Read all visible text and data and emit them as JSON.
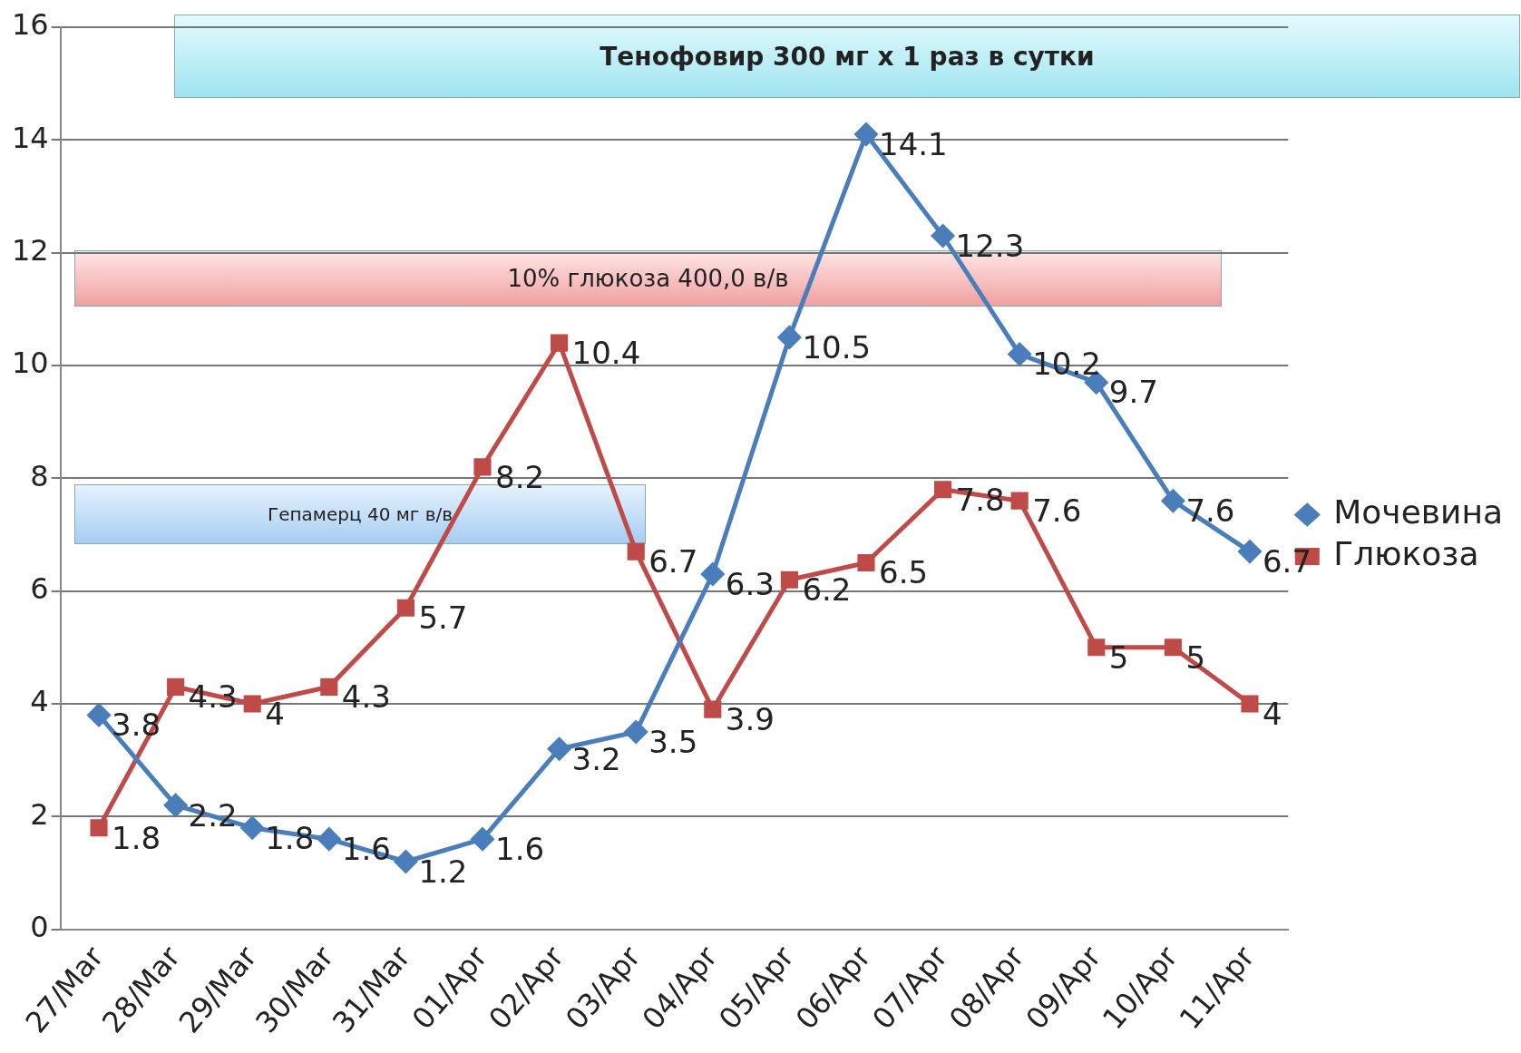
{
  "chart_data": {
    "type": "line",
    "categories": [
      "27/Mar",
      "28/Mar",
      "29/Mar",
      "30/Mar",
      "31/Mar",
      "01/Apr",
      "02/Apr",
      "03/Apr",
      "04/Apr",
      "05/Apr",
      "06/Apr",
      "07/Apr",
      "08/Apr",
      "09/Apr",
      "10/Apr",
      "11/Apr"
    ],
    "series": [
      {
        "name": "Мочевина",
        "color": "#4a7ebb",
        "marker": "diamond",
        "values": [
          3.8,
          2.2,
          1.8,
          1.6,
          1.2,
          1.6,
          3.2,
          3.5,
          6.3,
          10.5,
          14.1,
          12.3,
          10.2,
          9.7,
          7.6,
          6.7
        ]
      },
      {
        "name": "Глюкоза",
        "color": "#be4b48",
        "marker": "square",
        "values": [
          1.8,
          4.3,
          4,
          4.3,
          5.7,
          8.2,
          10.4,
          6.7,
          3.9,
          6.2,
          6.5,
          7.8,
          7.6,
          5,
          5,
          4
        ]
      }
    ],
    "ylim": [
      0,
      16
    ],
    "yticks": [
      0,
      2,
      4,
      6,
      8,
      10,
      12,
      14,
      16
    ],
    "grid": "y",
    "legend": "right",
    "data_labels": true,
    "annotations": [
      "Тенофовир 300 мг х 1 раз в сутки",
      "10% глюкоза 400,0 в/в",
      "Гепамерц  40 мг  в/в"
    ]
  }
}
